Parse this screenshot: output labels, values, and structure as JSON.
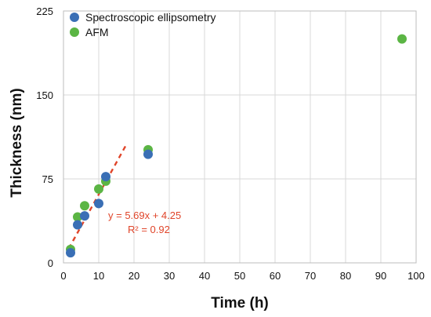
{
  "chart_data": {
    "type": "scatter",
    "title": "",
    "xlabel": "Time (h)",
    "ylabel": "Thickness (nm)",
    "xlim": [
      0,
      100
    ],
    "ylim": [
      0,
      225
    ],
    "xticks": [
      "0",
      "10",
      "20",
      "30",
      "40",
      "50",
      "60",
      "70",
      "80",
      "90",
      "100"
    ],
    "yticks": [
      "0",
      "75",
      "150",
      "225"
    ],
    "xtick_values": [
      0,
      10,
      20,
      30,
      40,
      50,
      60,
      70,
      80,
      90,
      100
    ],
    "ytick_values": [
      0,
      75,
      150,
      225
    ],
    "grid": "vertical and horizontal",
    "legend_position": "top-left",
    "series": [
      {
        "name": "Spectroscopic ellipsometry",
        "color": "#3a6fb5",
        "x": [
          2,
          4,
          6,
          10,
          12,
          24
        ],
        "y": [
          9,
          34,
          42,
          53,
          77,
          97
        ]
      },
      {
        "name": "AFM",
        "color": "#5bb544",
        "x": [
          2,
          4,
          6,
          10,
          12,
          24,
          96
        ],
        "y": [
          12,
          41,
          51,
          66,
          73,
          101,
          200
        ]
      }
    ],
    "fit": {
      "color": "#e0452a",
      "slope": 5.69,
      "intercept": 4.25,
      "x_range": [
        1.5,
        18
      ],
      "equation": "y = 5.69x + 4.25",
      "r_squared": "R² = 0.92"
    }
  }
}
